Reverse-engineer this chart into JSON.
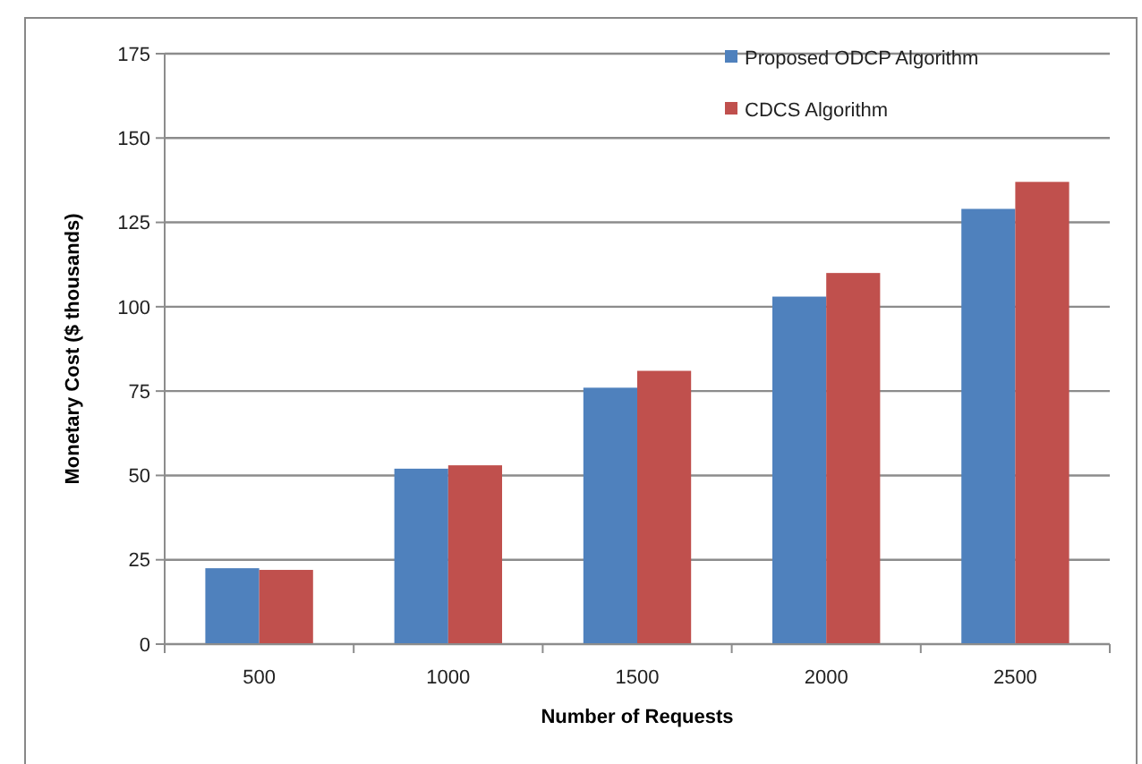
{
  "chart_data": {
    "type": "bar",
    "xlabel": "Number of Requests",
    "ylabel": "Monetary Cost ($ thousands)",
    "categories": [
      "500",
      "1000",
      "1500",
      "2000",
      "2500"
    ],
    "series": [
      {
        "name": "Proposed ODCP Algorithm",
        "color": "#4f81bd",
        "values": [
          22.5,
          52,
          76,
          103,
          129
        ]
      },
      {
        "name": "CDCS Algorithm",
        "color": "#c0504d",
        "values": [
          22,
          53,
          81,
          110,
          137
        ]
      }
    ],
    "ylim": [
      0,
      175
    ],
    "yticks": [
      0,
      25,
      50,
      75,
      100,
      125,
      150,
      175
    ],
    "grid": "y",
    "legend": "top right"
  }
}
